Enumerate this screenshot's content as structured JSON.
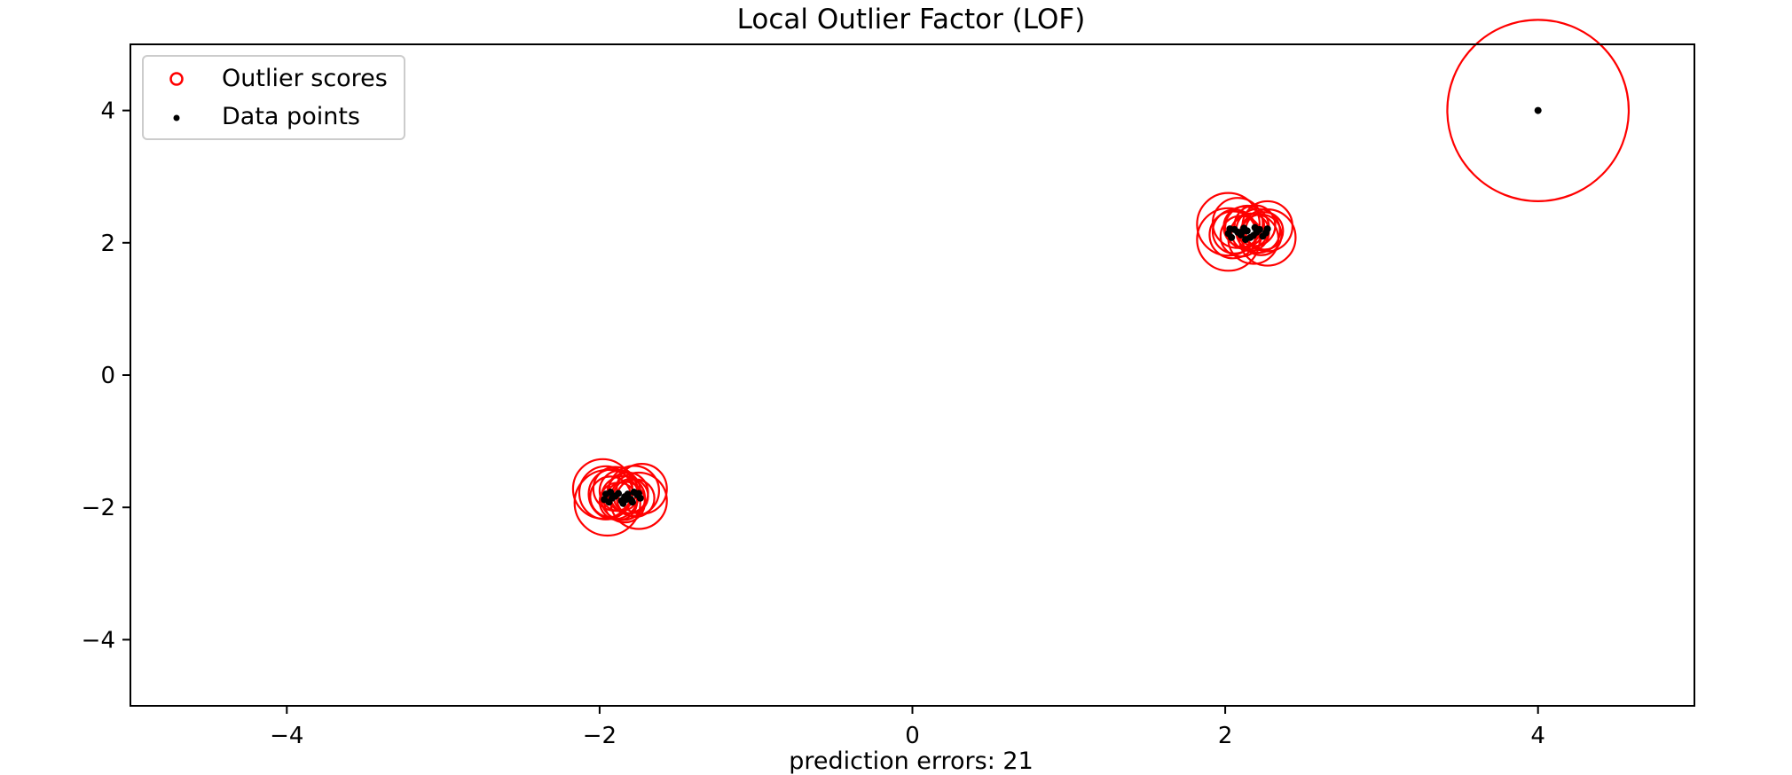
{
  "chart_data": {
    "type": "scatter",
    "title": "Local Outlier Factor (LOF)",
    "xlabel": "prediction errors: 21",
    "ylabel": "",
    "xlim": [
      -5,
      5
    ],
    "ylim": [
      -5,
      5
    ],
    "xticks": [
      -4,
      -2,
      0,
      2,
      4
    ],
    "yticks": [
      -4,
      -2,
      0,
      2,
      4
    ],
    "xtick_labels": [
      "−4",
      "−2",
      "0",
      "2",
      "4"
    ],
    "ytick_labels": [
      "−4",
      "−2",
      "0",
      "2",
      "4"
    ],
    "grid": false,
    "legend_position": "upper-left",
    "colors": {
      "outlier": "#ff0000",
      "points": "#000000"
    },
    "series": [
      {
        "name": "Outlier scores",
        "marker": "hollow-circle",
        "points": [
          [
            -1.98,
            -1.72,
            0.19
          ],
          [
            -1.91,
            -1.8,
            0.16
          ],
          [
            -1.85,
            -1.86,
            0.14
          ],
          [
            -1.78,
            -1.75,
            0.16
          ],
          [
            -1.73,
            -1.72,
            0.16
          ],
          [
            -1.95,
            -1.93,
            0.21
          ],
          [
            -1.75,
            -1.9,
            0.18
          ],
          [
            -1.82,
            -1.78,
            0.13
          ],
          [
            -1.88,
            -1.91,
            0.12
          ],
          [
            -1.93,
            -1.84,
            0.13
          ],
          [
            -1.8,
            -1.83,
            0.11
          ],
          [
            -1.87,
            -1.75,
            0.13
          ],
          [
            -1.96,
            -1.78,
            0.17
          ],
          [
            -1.77,
            -1.86,
            0.12
          ],
          [
            -1.9,
            -1.72,
            0.14
          ],
          [
            -1.84,
            -1.92,
            0.13
          ],
          [
            2.02,
            2.28,
            0.2
          ],
          [
            2.08,
            2.3,
            0.16
          ],
          [
            2.14,
            2.23,
            0.14
          ],
          [
            2.21,
            2.18,
            0.14
          ],
          [
            2.27,
            2.25,
            0.16
          ],
          [
            2.02,
            2.05,
            0.2
          ],
          [
            2.27,
            2.08,
            0.18
          ],
          [
            2.18,
            2.06,
            0.16
          ],
          [
            2.1,
            2.1,
            0.13
          ],
          [
            2.06,
            2.17,
            0.14
          ],
          [
            2.16,
            2.16,
            0.12
          ],
          [
            2.23,
            2.12,
            0.13
          ],
          [
            2.12,
            2.24,
            0.13
          ],
          [
            2.05,
            2.12,
            0.15
          ],
          [
            2.19,
            2.26,
            0.13
          ],
          [
            2.25,
            2.18,
            0.12
          ],
          [
            4.0,
            4.0,
            0.58
          ]
        ]
      },
      {
        "name": "Data points",
        "marker": "dot",
        "points": [
          [
            -1.96,
            -1.8
          ],
          [
            -1.92,
            -1.86
          ],
          [
            -1.88,
            -1.79
          ],
          [
            -1.84,
            -1.84
          ],
          [
            -1.8,
            -1.88
          ],
          [
            -1.76,
            -1.81
          ],
          [
            -1.94,
            -1.92
          ],
          [
            -1.86,
            -1.9
          ],
          [
            -1.78,
            -1.77
          ],
          [
            -1.9,
            -1.83
          ],
          [
            -1.82,
            -1.8
          ],
          [
            -1.74,
            -1.86
          ],
          [
            -1.97,
            -1.88
          ],
          [
            -1.85,
            -1.94
          ],
          [
            -1.79,
            -1.92
          ],
          [
            -1.93,
            -1.77
          ],
          [
            -1.83,
            -1.88
          ],
          [
            -1.75,
            -1.79
          ],
          [
            2.02,
            2.14
          ],
          [
            2.06,
            2.2
          ],
          [
            2.1,
            2.12
          ],
          [
            2.14,
            2.18
          ],
          [
            2.18,
            2.11
          ],
          [
            2.22,
            2.2
          ],
          [
            2.26,
            2.15
          ],
          [
            2.04,
            2.08
          ],
          [
            2.12,
            2.22
          ],
          [
            2.16,
            2.08
          ],
          [
            2.2,
            2.16
          ],
          [
            2.24,
            2.1
          ],
          [
            2.08,
            2.16
          ],
          [
            2.27,
            2.21
          ],
          [
            2.13,
            2.05
          ],
          [
            2.03,
            2.21
          ],
          [
            2.19,
            2.23
          ],
          [
            2.11,
            2.17
          ],
          [
            4.0,
            4.0
          ]
        ]
      }
    ]
  }
}
